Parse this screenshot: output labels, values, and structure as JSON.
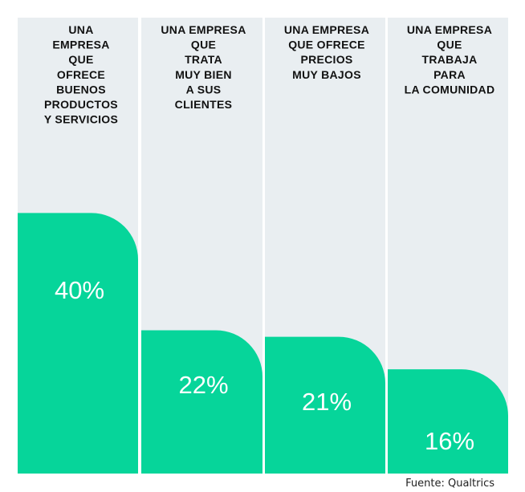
{
  "chart_data": {
    "type": "bar",
    "categories": [
      [
        "UNA",
        "EMPRESA",
        "QUE",
        "OFRECE",
        "BUENOS",
        "PRODUCTOS",
        "Y SERVICIOS"
      ],
      [
        "UNA EMPRESA",
        "QUE",
        "TRATA",
        "MUY BIEN",
        "A SUS",
        "CLIENTES"
      ],
      [
        "UNA EMPRESA",
        "QUE OFRECE",
        "PRECIOS",
        "MUY BAJOS"
      ],
      [
        "UNA EMPRESA",
        "QUE",
        "TRABAJA",
        "PARA",
        "LA COMUNIDAD"
      ]
    ],
    "values": [
      40,
      22,
      21,
      16
    ],
    "value_labels": [
      "40%",
      "22%",
      "21%",
      "16%"
    ],
    "ylim": [
      0,
      70
    ],
    "grid": false,
    "colors": {
      "bar": "#06d59a",
      "column_bg": "#e9eef1",
      "text": "#111111",
      "value_text": "#ffffff"
    }
  },
  "source": "Fuente: Qualtrics"
}
